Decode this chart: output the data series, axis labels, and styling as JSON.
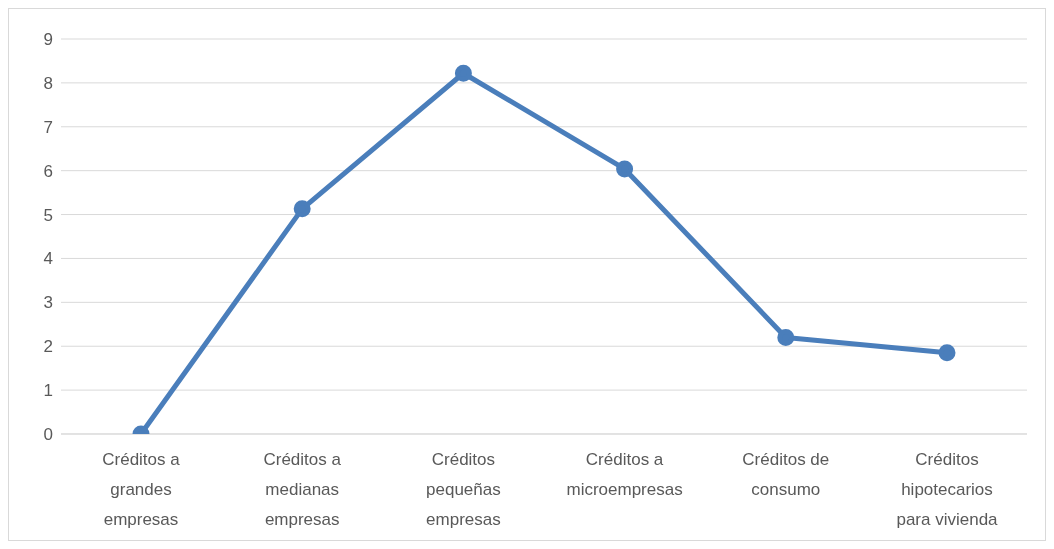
{
  "chart_data": {
    "type": "line",
    "categories": [
      "Créditos a grandes empresas",
      "Créditos a medianas empresas",
      "Créditos pequeñas empresas",
      "Créditos a microempresas",
      "Créditos de consumo",
      "Créditos hipotecarios para vivienda"
    ],
    "series": [
      {
        "color": "#4a7ebb",
        "values": [
          0,
          5.13,
          8.22,
          6.04,
          2.2,
          1.85
        ]
      }
    ],
    "ylim": [
      0,
      9
    ],
    "yticks": [
      0,
      1,
      2,
      3,
      4,
      5,
      6,
      7,
      8,
      9
    ],
    "grid": "y",
    "marker": "circle",
    "line_style": "solid",
    "legend": false
  }
}
